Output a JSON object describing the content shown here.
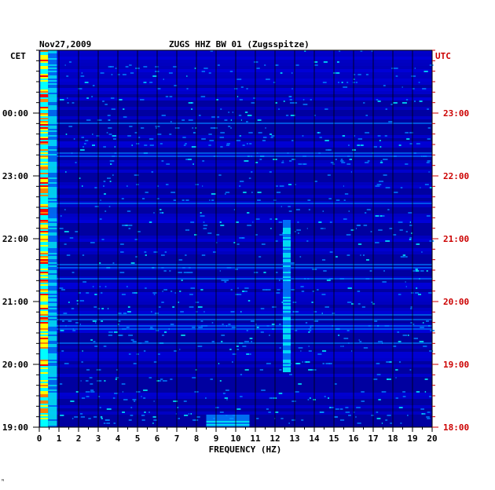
{
  "chart_data": {
    "type": "heatmap",
    "title_left": "Nov27,2009",
    "title_center": "ZUGS HHZ BW 01 (Zugsspitze)",
    "xlabel": "FREQUENCY (HZ)",
    "xlim": [
      0,
      20
    ],
    "x_ticks": [
      "0",
      "1",
      "2",
      "3",
      "4",
      "5",
      "6",
      "7",
      "8",
      "9",
      "10",
      "11",
      "12",
      "13",
      "14",
      "15",
      "16",
      "17",
      "18",
      "19",
      "20"
    ],
    "left_axis_label": "CET",
    "right_axis_label": "UTC",
    "left_time_ticks": [
      "00:00",
      "23:00",
      "22:00",
      "21:00",
      "20:00",
      "19:00"
    ],
    "right_time_ticks": [
      "23:00",
      "22:00",
      "21:00",
      "20:00",
      "19:00",
      "18:00"
    ],
    "colormap": [
      "#0000a0",
      "#0000ff",
      "#0080ff",
      "#00ffff",
      "#ffff00",
      "#ff8000",
      "#ff0000"
    ],
    "left_axis_color": "#000000",
    "right_axis_color": "#cc0000",
    "grid": true,
    "features": [
      {
        "freq_hz": 0.2,
        "intensity": "high",
        "span": "entire record"
      },
      {
        "freq_hz": 12.6,
        "intensity": "moderate",
        "span": "19:00–21:00 UTC"
      },
      {
        "freq_hz": 9.5,
        "intensity": "moderate",
        "span": "near 18:00 UTC"
      }
    ]
  },
  "footer_mark": "ᴺ"
}
